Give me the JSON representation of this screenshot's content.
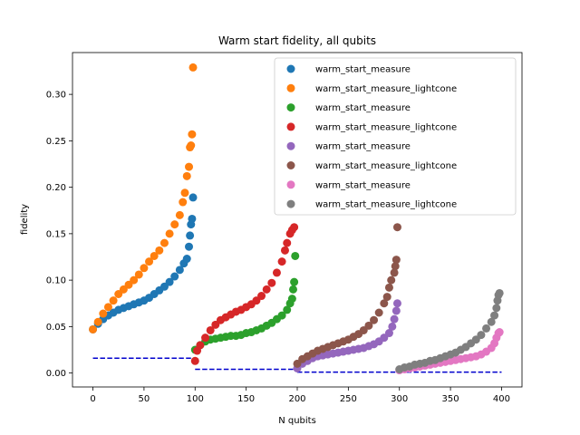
{
  "chart_data": {
    "type": "scatter",
    "title": "Warm start fidelity, all qubits",
    "xlabel": "N qubits",
    "ylabel": "fidelity",
    "xlim": [
      -20,
      420
    ],
    "ylim": [
      -0.015,
      0.345
    ],
    "xticks": [
      0,
      50,
      100,
      150,
      200,
      250,
      300,
      350,
      400
    ],
    "yticks": [
      0.0,
      0.05,
      0.1,
      0.15,
      0.2,
      0.25,
      0.3
    ],
    "ytick_labels": [
      "0.00",
      "0.05",
      "0.10",
      "0.15",
      "0.20",
      "0.25",
      "0.30"
    ],
    "legend_position": "top-right",
    "grid": false,
    "series": [
      {
        "name": "warm_start_measure",
        "color": "#1f77b4",
        "points": [
          [
            0,
            0.047
          ],
          [
            5,
            0.053
          ],
          [
            10,
            0.058
          ],
          [
            15,
            0.062
          ],
          [
            20,
            0.065
          ],
          [
            25,
            0.068
          ],
          [
            30,
            0.07
          ],
          [
            35,
            0.072
          ],
          [
            40,
            0.074
          ],
          [
            45,
            0.076
          ],
          [
            50,
            0.078
          ],
          [
            55,
            0.081
          ],
          [
            60,
            0.085
          ],
          [
            65,
            0.089
          ],
          [
            70,
            0.093
          ],
          [
            75,
            0.098
          ],
          [
            80,
            0.104
          ],
          [
            85,
            0.111
          ],
          [
            89,
            0.118
          ],
          [
            92,
            0.123
          ],
          [
            94,
            0.136
          ],
          [
            95,
            0.148
          ],
          [
            96,
            0.16
          ],
          [
            97,
            0.166
          ],
          [
            98,
            0.189
          ]
        ]
      },
      {
        "name": "warm_start_measure_lightcone",
        "color": "#ff7f0e",
        "points": [
          [
            0,
            0.047
          ],
          [
            5,
            0.055
          ],
          [
            10,
            0.064
          ],
          [
            15,
            0.071
          ],
          [
            20,
            0.078
          ],
          [
            25,
            0.085
          ],
          [
            30,
            0.09
          ],
          [
            35,
            0.095
          ],
          [
            40,
            0.1
          ],
          [
            45,
            0.106
          ],
          [
            50,
            0.113
          ],
          [
            55,
            0.12
          ],
          [
            60,
            0.126
          ],
          [
            65,
            0.132
          ],
          [
            70,
            0.14
          ],
          [
            75,
            0.15
          ],
          [
            80,
            0.16
          ],
          [
            85,
            0.17
          ],
          [
            88,
            0.184
          ],
          [
            90,
            0.194
          ],
          [
            92,
            0.212
          ],
          [
            94,
            0.222
          ],
          [
            95,
            0.243
          ],
          [
            96,
            0.245
          ],
          [
            97,
            0.257
          ],
          [
            98,
            0.329
          ]
        ]
      },
      {
        "name": "warm_start_measure",
        "color": "#2ca02c",
        "points": [
          [
            100,
            0.025
          ],
          [
            105,
            0.03
          ],
          [
            110,
            0.034
          ],
          [
            115,
            0.036
          ],
          [
            120,
            0.037
          ],
          [
            125,
            0.038
          ],
          [
            130,
            0.039
          ],
          [
            135,
            0.04
          ],
          [
            140,
            0.04
          ],
          [
            145,
            0.041
          ],
          [
            150,
            0.043
          ],
          [
            155,
            0.044
          ],
          [
            160,
            0.046
          ],
          [
            165,
            0.048
          ],
          [
            170,
            0.051
          ],
          [
            175,
            0.054
          ],
          [
            180,
            0.058
          ],
          [
            185,
            0.062
          ],
          [
            190,
            0.068
          ],
          [
            193,
            0.075
          ],
          [
            195,
            0.08
          ],
          [
            196,
            0.09
          ],
          [
            197,
            0.098
          ],
          [
            198,
            0.126
          ]
        ]
      },
      {
        "name": "warm_start_measure_lightcone",
        "color": "#d62728",
        "points": [
          [
            100,
            0.013
          ],
          [
            102,
            0.024
          ],
          [
            105,
            0.03
          ],
          [
            110,
            0.038
          ],
          [
            115,
            0.046
          ],
          [
            120,
            0.052
          ],
          [
            125,
            0.057
          ],
          [
            130,
            0.06
          ],
          [
            135,
            0.063
          ],
          [
            140,
            0.066
          ],
          [
            145,
            0.068
          ],
          [
            150,
            0.071
          ],
          [
            155,
            0.074
          ],
          [
            160,
            0.078
          ],
          [
            165,
            0.083
          ],
          [
            170,
            0.09
          ],
          [
            175,
            0.097
          ],
          [
            180,
            0.108
          ],
          [
            185,
            0.12
          ],
          [
            188,
            0.132
          ],
          [
            190,
            0.14
          ],
          [
            193,
            0.15
          ],
          [
            195,
            0.154
          ],
          [
            197,
            0.157
          ]
        ]
      },
      {
        "name": "warm_start_measure",
        "color": "#9467bd",
        "points": [
          [
            200,
            0.005
          ],
          [
            205,
            0.01
          ],
          [
            210,
            0.013
          ],
          [
            215,
            0.016
          ],
          [
            220,
            0.018
          ],
          [
            225,
            0.019
          ],
          [
            230,
            0.02
          ],
          [
            235,
            0.021
          ],
          [
            240,
            0.022
          ],
          [
            245,
            0.023
          ],
          [
            250,
            0.024
          ],
          [
            255,
            0.025
          ],
          [
            260,
            0.026
          ],
          [
            265,
            0.027
          ],
          [
            270,
            0.029
          ],
          [
            275,
            0.031
          ],
          [
            280,
            0.034
          ],
          [
            285,
            0.038
          ],
          [
            290,
            0.043
          ],
          [
            293,
            0.05
          ],
          [
            295,
            0.058
          ],
          [
            297,
            0.067
          ],
          [
            298,
            0.075
          ]
        ]
      },
      {
        "name": "warm_start_measure_lightcone",
        "color": "#8c564b",
        "points": [
          [
            200,
            0.01
          ],
          [
            205,
            0.015
          ],
          [
            210,
            0.018
          ],
          [
            215,
            0.021
          ],
          [
            220,
            0.024
          ],
          [
            225,
            0.026
          ],
          [
            230,
            0.028
          ],
          [
            235,
            0.03
          ],
          [
            240,
            0.032
          ],
          [
            245,
            0.034
          ],
          [
            250,
            0.036
          ],
          [
            255,
            0.039
          ],
          [
            260,
            0.042
          ],
          [
            265,
            0.046
          ],
          [
            270,
            0.051
          ],
          [
            275,
            0.057
          ],
          [
            280,
            0.065
          ],
          [
            285,
            0.075
          ],
          [
            288,
            0.082
          ],
          [
            290,
            0.092
          ],
          [
            292,
            0.1
          ],
          [
            295,
            0.108
          ],
          [
            296,
            0.115
          ],
          [
            297,
            0.122
          ],
          [
            298,
            0.157
          ]
        ]
      },
      {
        "name": "warm_start_measure",
        "color": "#e377c2",
        "points": [
          [
            300,
            0.003
          ],
          [
            305,
            0.004
          ],
          [
            310,
            0.005
          ],
          [
            315,
            0.006
          ],
          [
            320,
            0.007
          ],
          [
            325,
            0.008
          ],
          [
            330,
            0.009
          ],
          [
            335,
            0.01
          ],
          [
            340,
            0.011
          ],
          [
            345,
            0.012
          ],
          [
            350,
            0.013
          ],
          [
            355,
            0.014
          ],
          [
            360,
            0.015
          ],
          [
            365,
            0.016
          ],
          [
            370,
            0.017
          ],
          [
            375,
            0.018
          ],
          [
            380,
            0.02
          ],
          [
            385,
            0.023
          ],
          [
            390,
            0.027
          ],
          [
            393,
            0.032
          ],
          [
            395,
            0.038
          ],
          [
            397,
            0.043
          ],
          [
            398,
            0.044
          ]
        ]
      },
      {
        "name": "warm_start_measure_lightcone",
        "color": "#7f7f7f",
        "points": [
          [
            300,
            0.004
          ],
          [
            305,
            0.006
          ],
          [
            310,
            0.007
          ],
          [
            315,
            0.009
          ],
          [
            320,
            0.01
          ],
          [
            325,
            0.011
          ],
          [
            330,
            0.013
          ],
          [
            335,
            0.014
          ],
          [
            340,
            0.016
          ],
          [
            345,
            0.018
          ],
          [
            350,
            0.02
          ],
          [
            355,
            0.022
          ],
          [
            360,
            0.025
          ],
          [
            365,
            0.028
          ],
          [
            370,
            0.032
          ],
          [
            375,
            0.036
          ],
          [
            380,
            0.041
          ],
          [
            385,
            0.048
          ],
          [
            390,
            0.055
          ],
          [
            393,
            0.062
          ],
          [
            395,
            0.07
          ],
          [
            396,
            0.078
          ],
          [
            397,
            0.084
          ],
          [
            398,
            0.086
          ]
        ]
      }
    ],
    "reference_lines": [
      {
        "color": "#0000cd",
        "style": "dashed",
        "x": [
          0,
          100
        ],
        "y": 0.016
      },
      {
        "color": "#0000cd",
        "style": "dashed",
        "x": [
          100,
          200
        ],
        "y": 0.004
      },
      {
        "color": "#0000cd",
        "style": "dashed",
        "x": [
          200,
          300
        ],
        "y": 0.001
      },
      {
        "color": "#0000cd",
        "style": "dashed",
        "x": [
          300,
          400
        ],
        "y": 0.001
      }
    ]
  }
}
